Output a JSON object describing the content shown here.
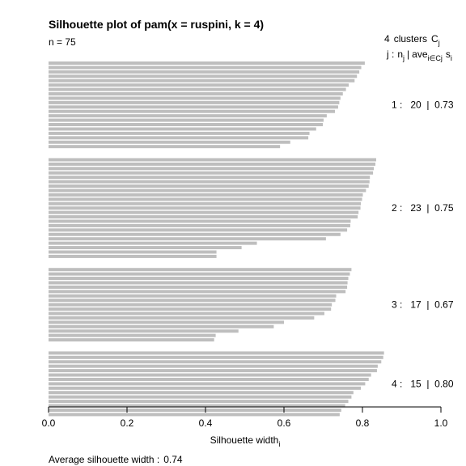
{
  "chart_data": {
    "type": "bar",
    "orientation": "horizontal",
    "title": "Silhouette plot of pam(x = ruspini, k = 4)",
    "n_label": "n = 75",
    "legend": {
      "header_count": "4",
      "header_word": "clusters",
      "header_sym": "C",
      "header_sym_sub": "j",
      "sub_j": "j :",
      "sub_n": "n",
      "sub_n_sub": "j",
      "sub_sep": "|",
      "sub_ave": "ave",
      "sub_ave_sub": "i∈Cj",
      "sub_s": "s",
      "sub_s_sub": "i"
    },
    "xlabel": "Silhouette width",
    "xlabel_sub": "i",
    "xlim": [
      0,
      1
    ],
    "x_ticks": [
      "0.0",
      "0.2",
      "0.4",
      "0.6",
      "0.8",
      "1.0"
    ],
    "footer_label": "Average silhouette width :",
    "average_silhouette_width": "0.74",
    "bar_color": "#bebebe",
    "clusters": [
      {
        "j": 1,
        "n": 20,
        "ave": "0.73",
        "label": "1 :   20  |  0.73",
        "values": [
          0.806,
          0.797,
          0.792,
          0.786,
          0.78,
          0.765,
          0.758,
          0.75,
          0.744,
          0.741,
          0.738,
          0.73,
          0.709,
          0.701,
          0.699,
          0.682,
          0.665,
          0.662,
          0.616,
          0.59
        ]
      },
      {
        "j": 2,
        "n": 23,
        "ave": "0.75",
        "label": "2 :   23  |  0.75",
        "values": [
          0.835,
          0.833,
          0.829,
          0.827,
          0.819,
          0.818,
          0.816,
          0.809,
          0.801,
          0.799,
          0.796,
          0.795,
          0.79,
          0.788,
          0.77,
          0.769,
          0.761,
          0.744,
          0.707,
          0.531,
          0.492,
          0.428,
          0.428
        ]
      },
      {
        "j": 3,
        "n": 17,
        "ave": "0.67",
        "label": "3 :   17  |  0.67",
        "values": [
          0.772,
          0.768,
          0.764,
          0.762,
          0.761,
          0.757,
          0.733,
          0.731,
          0.722,
          0.72,
          0.703,
          0.677,
          0.6,
          0.574,
          0.484,
          0.426,
          0.422
        ]
      },
      {
        "j": 4,
        "n": 15,
        "ave": "0.80",
        "label": "4 :   15  |  0.80",
        "values": [
          0.855,
          0.853,
          0.848,
          0.839,
          0.837,
          0.822,
          0.816,
          0.807,
          0.796,
          0.777,
          0.772,
          0.764,
          0.756,
          0.746,
          0.742
        ]
      }
    ]
  }
}
